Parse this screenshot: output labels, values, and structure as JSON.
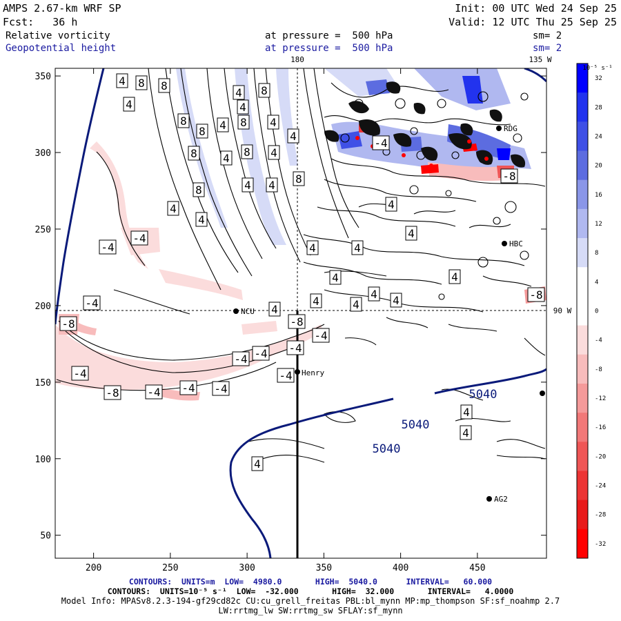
{
  "header": {
    "model": "AMPS 2.67-km WRF SP",
    "fcst": "Fcst:   36 h",
    "init": "Init: 00 UTC Wed 24 Sep 25",
    "valid": "Valid: 12 UTC Thu 25 Sep 25",
    "field1": "Relative vorticity",
    "field2": "Geopotential height",
    "pressure1": "at pressure =  500 hPa",
    "pressure2": "at pressure =  500 hPa",
    "sm1": "sm= 2",
    "sm2": "sm= 2"
  },
  "map": {
    "lon_labels": [
      {
        "id": "lon-180",
        "text": "180"
      },
      {
        "id": "lon-135w",
        "text": "135 W"
      },
      {
        "id": "lon-90w",
        "text": "90 W"
      }
    ],
    "stations": [
      {
        "id": "ncu",
        "name": "NCU"
      },
      {
        "id": "henry",
        "name": "Henry"
      },
      {
        "id": "rdg",
        "name": "RDG"
      },
      {
        "id": "hbc",
        "name": "HBC"
      },
      {
        "id": "ag2",
        "name": "AG2"
      },
      {
        "id": "east",
        "name": ""
      }
    ],
    "height_labels": [
      "5040",
      "5040",
      "5040"
    ]
  },
  "chart_data": {
    "type": "contour",
    "xlim": [
      175,
      495
    ],
    "ylim": [
      35,
      355
    ],
    "x_ticks": [
      200,
      250,
      300,
      350,
      400,
      450
    ],
    "y_ticks": [
      50,
      100,
      150,
      200,
      250,
      300,
      350
    ],
    "colorbar": {
      "unit": "10⁻⁵ s⁻¹",
      "levels": [
        32,
        28,
        24,
        20,
        16,
        12,
        8,
        4,
        0,
        -4,
        -8,
        -12,
        -16,
        -20,
        -24,
        -28,
        -32
      ],
      "colors": [
        "#0000ff",
        "#2233ee",
        "#3f50e6",
        "#5c6ce0",
        "#8a96e8",
        "#b0b8f0",
        "#d6dbf7",
        "#ffffff",
        "#ffffff",
        "#fbdcdc",
        "#f8bcbc",
        "#f59a9a",
        "#f27878",
        "#ef5656",
        "#ec3434",
        "#e81a1a",
        "#ff0000"
      ]
    },
    "vorticity_labels": [
      "4",
      "8",
      "8",
      "4",
      "8",
      "4",
      "4",
      "8",
      "8",
      "4",
      "8",
      "4",
      "4",
      "8",
      "4",
      "8",
      "4",
      "8",
      "4",
      "4",
      "8",
      "4",
      "-4",
      "-4",
      "-4",
      "-8",
      "-4",
      "-4",
      "-4",
      "-4",
      "-4",
      "-8",
      "-4",
      "-4",
      "-4",
      "-4",
      "-8",
      "4",
      "4",
      "4",
      "4",
      "4",
      "4",
      "4",
      "4",
      "4",
      "4",
      "4",
      "4",
      "4",
      "4",
      "4",
      "-4",
      "-8",
      "-8"
    ]
  },
  "footer": {
    "line1": "CONTOURS:  UNITS=m  LOW=  4980.0       HIGH=  5040.0      INTERVAL=   60.000",
    "line2": "CONTOURS:  UNITS=10⁻⁵ s⁻¹  LOW=  -32.000       HIGH=  32.000       INTERVAL=   4.0000",
    "line3": "Model Info: MPASv8.2.3-194-gf29cd82c CU:cu_grell_freitas PBL:bl_mynn MP:mp_thompson SF:sf_noahmp 2.7",
    "line4": "LW:rrtmg_lw SW:rrtmg_sw SFLAY:sf_mynn"
  }
}
